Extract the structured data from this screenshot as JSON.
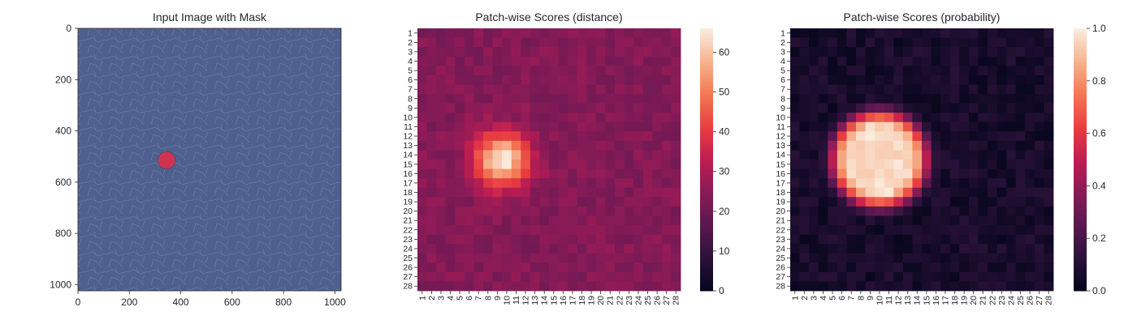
{
  "chart_data": [
    {
      "type": "image",
      "title": "Input Image with Mask",
      "x_ticks": [
        0,
        200,
        400,
        600,
        800,
        1000
      ],
      "y_ticks": [
        0,
        200,
        400,
        600,
        800,
        1000
      ],
      "xlim": [
        0,
        1024
      ],
      "ylim": [
        0,
        1024
      ],
      "background_color": "#4f5f8e",
      "mask_color": "#e0324f",
      "mask_center": [
        345,
        515
      ],
      "mask_radius": 33
    },
    {
      "type": "heatmap",
      "title": "Patch-wise Scores (distance)",
      "size": 28,
      "row_labels": [
        "1",
        "2",
        "3",
        "4",
        "5",
        "6",
        "7",
        "8",
        "9",
        "10",
        "11",
        "12",
        "13",
        "14",
        "15",
        "16",
        "17",
        "18",
        "19",
        "20",
        "21",
        "22",
        "23",
        "24",
        "25",
        "26",
        "27",
        "28"
      ],
      "col_labels": [
        "1",
        "2",
        "3",
        "4",
        "5",
        "6",
        "7",
        "8",
        "9",
        "10",
        "11",
        "12",
        "13",
        "14",
        "15",
        "16",
        "17",
        "18",
        "19",
        "20",
        "21",
        "22",
        "23",
        "24",
        "25",
        "26",
        "27",
        "28"
      ],
      "blob_center": [
        9.5,
        14.5
      ],
      "blob_peak": 66,
      "background_level": 24,
      "colorbar_ticks": [
        0,
        10,
        20,
        30,
        40,
        50,
        60
      ],
      "vmin": 0,
      "vmax": 66,
      "colormap": "rocket"
    },
    {
      "type": "heatmap",
      "title": "Patch-wise Scores (probability)",
      "size": 28,
      "row_labels": [
        "1",
        "2",
        "3",
        "4",
        "5",
        "6",
        "7",
        "8",
        "9",
        "10",
        "11",
        "12",
        "13",
        "14",
        "15",
        "16",
        "17",
        "18",
        "19",
        "20",
        "21",
        "22",
        "23",
        "24",
        "25",
        "26",
        "27",
        "28"
      ],
      "col_labels": [
        "1",
        "2",
        "3",
        "4",
        "5",
        "6",
        "7",
        "8",
        "9",
        "10",
        "11",
        "12",
        "13",
        "14",
        "15",
        "16",
        "17",
        "18",
        "19",
        "20",
        "21",
        "22",
        "23",
        "24",
        "25",
        "26",
        "27",
        "28"
      ],
      "blob_center": [
        10,
        14.5
      ],
      "blob_peak": 1.0,
      "background_level": 0.02,
      "colorbar_ticks": [
        "0.0",
        "0.2",
        "0.4",
        "0.6",
        "0.8",
        "1.0"
      ],
      "vmin": 0,
      "vmax": 1,
      "colormap": "rocket"
    }
  ]
}
